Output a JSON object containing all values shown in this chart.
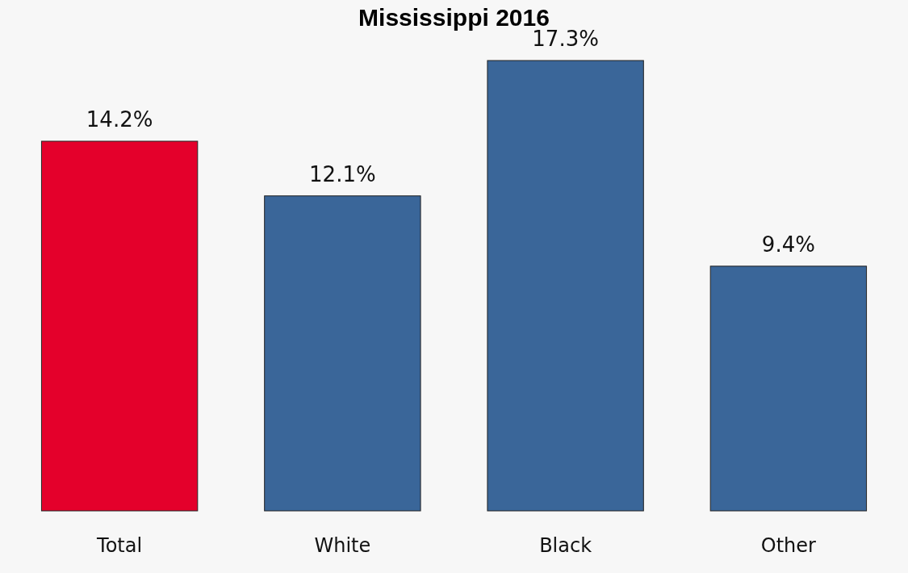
{
  "chart_data": {
    "type": "bar",
    "title": "Mississippi 2016",
    "categories": [
      "Total",
      "White",
      "Black",
      "Other"
    ],
    "values": [
      14.2,
      12.1,
      17.3,
      9.4
    ],
    "colors": [
      "#e4002b",
      "#3a6699",
      "#3a6699",
      "#3a6699"
    ],
    "value_labels": [
      "14.2%",
      "12.1%",
      "17.3%",
      "9.4%"
    ]
  }
}
